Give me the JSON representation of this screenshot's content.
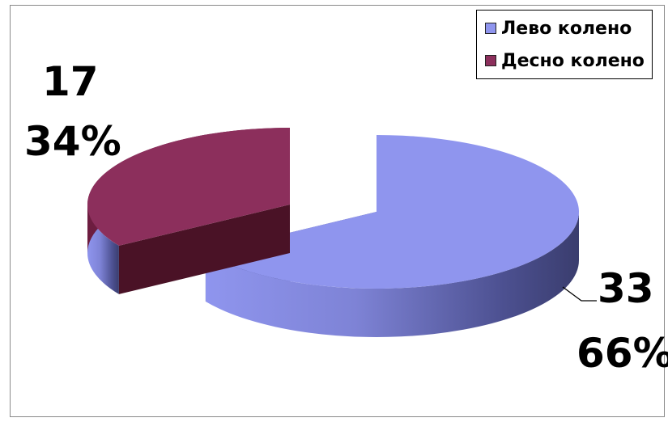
{
  "chart_data": {
    "type": "pie",
    "style": "3d-exploded",
    "categories": [
      "Лево колено",
      "Десно колено"
    ],
    "values": [
      33,
      17
    ],
    "labels": [
      {
        "value": "33",
        "percent": "66%"
      },
      {
        "value": "17",
        "percent": "34%"
      }
    ],
    "colors": [
      "#8f95ee",
      "#8c2f5c"
    ],
    "legend_position": "top-right"
  }
}
